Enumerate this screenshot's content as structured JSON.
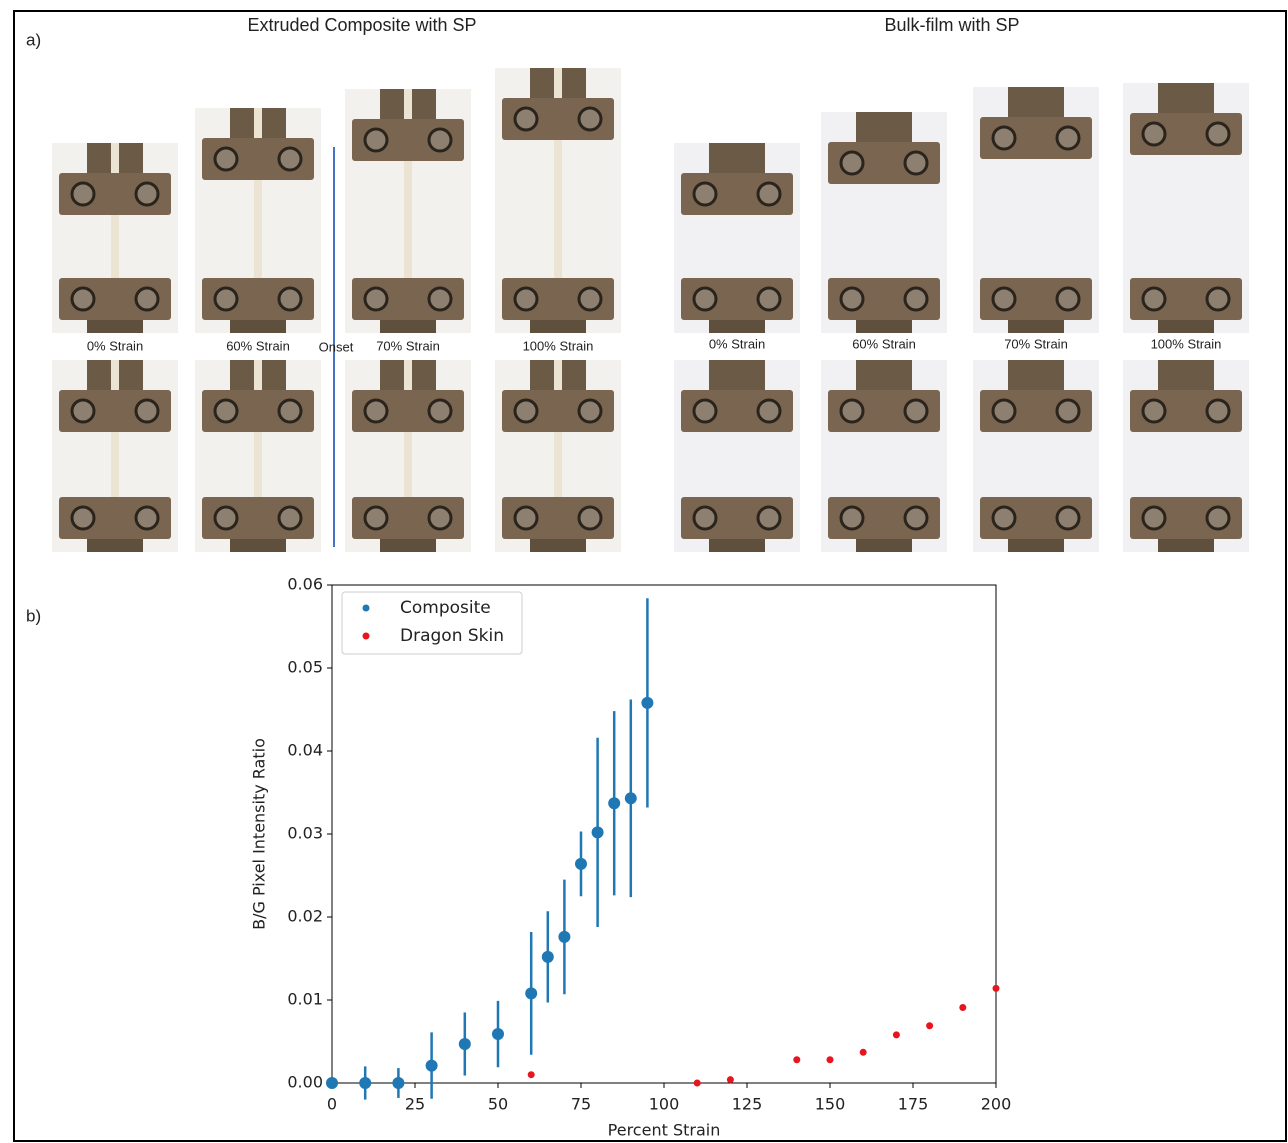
{
  "panel_a": {
    "label": "a)",
    "groups": [
      {
        "title": "Extruded Composite with SP",
        "strain_labels": [
          "0% Strain",
          "60% Strain",
          "70% Strain",
          "100% Strain"
        ]
      },
      {
        "title": "Bulk-film with SP",
        "strain_labels": [
          "0% Strain",
          "60% Strain",
          "70% Strain",
          "100% Strain"
        ]
      }
    ],
    "onset": "Onset"
  },
  "panel_b": {
    "label": "b)"
  },
  "chart_data": {
    "type": "scatter",
    "xlabel": "Percent Strain",
    "ylabel": "B/G Pixel Intensity Ratio",
    "xlim": [
      0,
      200
    ],
    "ylim": [
      0,
      0.06
    ],
    "xticks": [
      0,
      25,
      50,
      75,
      100,
      125,
      150,
      175,
      200
    ],
    "yticks": [
      {
        "value": 0,
        "label": "0.00"
      },
      {
        "value": 0.01,
        "label": "0.01"
      },
      {
        "value": 0.02,
        "label": "0.02"
      },
      {
        "value": 0.03,
        "label": "0.03"
      },
      {
        "value": 0.04,
        "label": "0.04"
      },
      {
        "value": 0.05,
        "label": "0.05"
      },
      {
        "value": 0.06,
        "label": "0.06"
      }
    ],
    "legend": "upper left",
    "series": [
      {
        "name": "Composite",
        "color": "#1f77b4",
        "x": [
          0,
          10,
          20,
          30,
          40,
          50,
          60,
          65,
          70,
          75,
          80,
          85,
          90,
          95
        ],
        "values": [
          0,
          0,
          0,
          0.0021,
          0.0047,
          0.0059,
          0.0108,
          0.0152,
          0.0176,
          0.0264,
          0.0302,
          0.0337,
          0.0343,
          0.0458
        ],
        "errors": [
          0,
          0.002,
          0.0018,
          0.004,
          0.0038,
          0.004,
          0.0074,
          0.0055,
          0.0069,
          0.0039,
          0.0114,
          0.0111,
          0.0119,
          0.0126
        ]
      },
      {
        "name": "Dragon Skin",
        "color": "#e8141e",
        "x": [
          60,
          110,
          120,
          140,
          150,
          160,
          170,
          180,
          190,
          200
        ],
        "values": [
          0.001,
          0,
          0.0004,
          0.0028,
          0.0028,
          0.0037,
          0.0058,
          0.0069,
          0.0091,
          0.0114
        ]
      }
    ]
  }
}
